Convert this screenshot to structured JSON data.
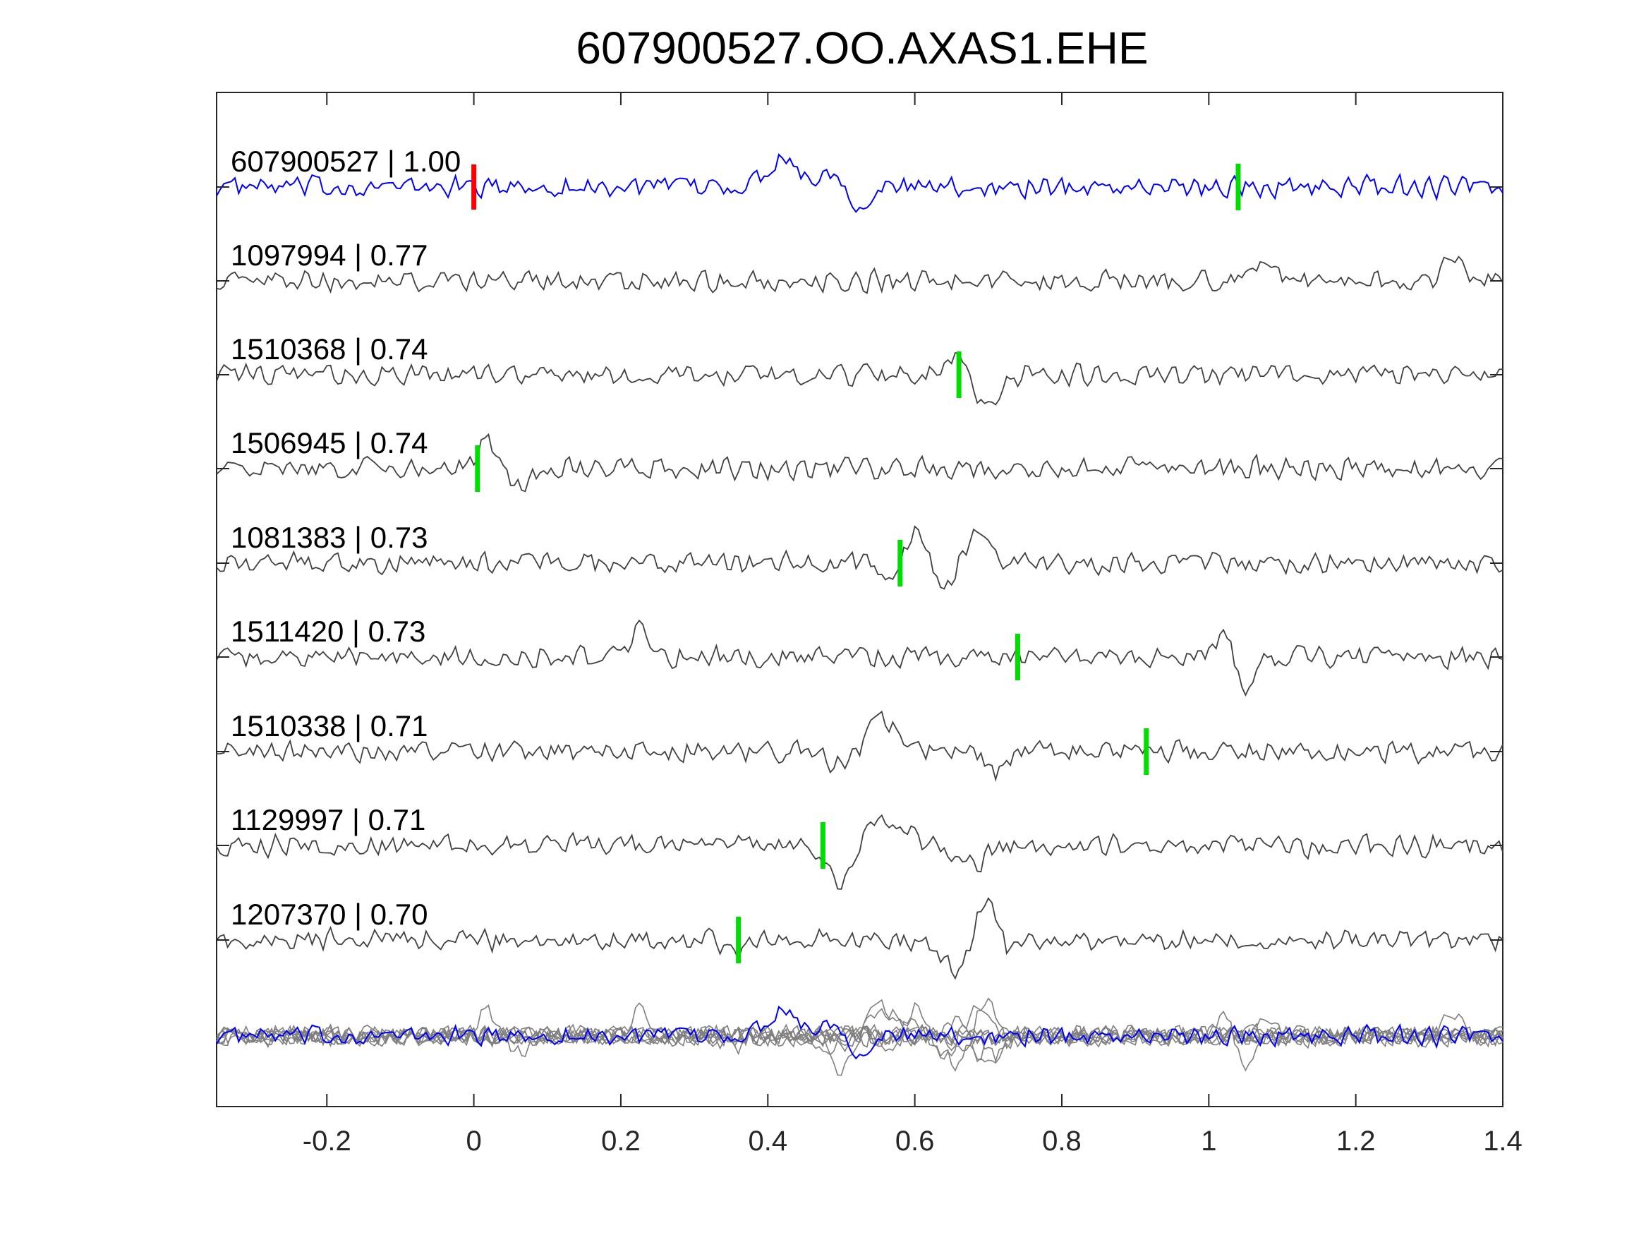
{
  "chart_data": {
    "type": "line",
    "title": "607900527.OO.AXAS1.EHE",
    "xlabel": "",
    "ylabel": "",
    "xlim": [
      -0.35,
      1.4
    ],
    "xticks": [
      -0.2,
      0,
      0.2,
      0.4,
      0.6,
      0.8,
      1,
      1.2,
      1.4
    ],
    "xtick_labels": [
      "-0.2",
      "0",
      "0.2",
      "0.4",
      "0.6",
      "0.8",
      "1",
      "1.2",
      "1.4"
    ],
    "grid": false,
    "colors": {
      "template": "#0000ff",
      "match": "#404040",
      "stack": "#7f7f7f",
      "pick_primary": "#ff0000",
      "pick_secondary": "#00dd00"
    },
    "traces": [
      {
        "id": "607900527",
        "cc": "1.00",
        "label": "607900527 | 1.00",
        "color": "#0000ff",
        "pick_red": 0.0,
        "pick_green": 1.04,
        "events": [
          [
            0.42,
            1.0,
            0.03
          ],
          [
            0.52,
            -0.6,
            0.025
          ],
          [
            0.49,
            0.7,
            0.02
          ]
        ]
      },
      {
        "id": "1097994",
        "cc": "0.77",
        "label": "1097994 | 0.77",
        "color": "#404040",
        "pick_green": null,
        "events": [
          [
            1.33,
            1.1,
            0.015
          ],
          [
            1.08,
            0.9,
            0.015
          ]
        ]
      },
      {
        "id": "1510368",
        "cc": "0.74",
        "label": "1510368 | 0.74",
        "color": "#404040",
        "pick_green": 0.66,
        "events": [
          [
            0.655,
            0.7,
            0.025
          ],
          [
            0.7,
            -1.1,
            0.025
          ]
        ]
      },
      {
        "id": "1506945",
        "cc": "0.74",
        "label": "1506945 | 0.74",
        "color": "#404040",
        "pick_green": 0.005,
        "events": [
          [
            0.015,
            1.0,
            0.015
          ],
          [
            0.06,
            -0.6,
            0.02
          ]
        ]
      },
      {
        "id": "1081383",
        "cc": "0.73",
        "label": "1081383 | 0.73",
        "color": "#404040",
        "pick_green": 0.58,
        "events": [
          [
            0.575,
            -0.7,
            0.02
          ],
          [
            0.6,
            1.2,
            0.025
          ],
          [
            0.64,
            -1.1,
            0.025
          ],
          [
            0.68,
            0.9,
            0.03
          ]
        ]
      },
      {
        "id": "1511420",
        "cc": "0.73",
        "label": "1511420 | 0.73",
        "color": "#404040",
        "pick_green": 0.74,
        "events": [
          [
            0.225,
            1.1,
            0.012
          ],
          [
            1.05,
            -1.0,
            0.015
          ],
          [
            1.02,
            0.8,
            0.015
          ]
        ]
      },
      {
        "id": "1510338",
        "cc": "0.71",
        "label": "1510338 | 0.71",
        "color": "#404040",
        "pick_green": 0.915,
        "events": [
          [
            0.555,
            1.1,
            0.025
          ],
          [
            0.5,
            -0.5,
            0.02
          ],
          [
            0.71,
            -0.7,
            0.02
          ]
        ]
      },
      {
        "id": "1129997",
        "cc": "0.71",
        "label": "1129997 | 0.71",
        "color": "#404040",
        "pick_green": 0.475,
        "events": [
          [
            0.5,
            -1.4,
            0.022
          ],
          [
            0.56,
            0.9,
            0.04
          ],
          [
            0.675,
            -0.65,
            0.03
          ]
        ]
      },
      {
        "id": "1207370",
        "cc": "0.70",
        "label": "1207370 | 0.70",
        "color": "#404040",
        "pick_green": 0.36,
        "events": [
          [
            0.36,
            -0.4,
            0.02
          ],
          [
            0.66,
            -1.3,
            0.025
          ],
          [
            0.695,
            1.4,
            0.025
          ],
          [
            0.73,
            -0.6,
            0.02
          ]
        ]
      }
    ],
    "stack": {
      "label": "",
      "overlay_count": 9,
      "template_color": "#0000ff",
      "match_color": "#7f7f7f"
    }
  }
}
